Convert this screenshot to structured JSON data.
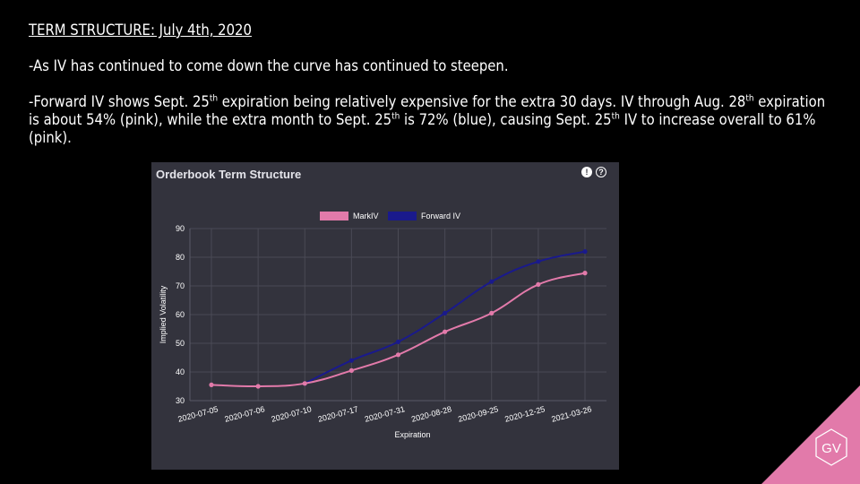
{
  "slide": {
    "title": "TERM STRUCTURE: July 4th, 2020",
    "bullet1": "-As IV has continued to come down the curve has continued to steepen.",
    "bullet2": {
      "p1": "-Forward IV shows Sept. 25",
      "s1": "th",
      "p2": " expiration being relatively expensive for the extra 30 days. IV through Aug. 28",
      "s2": "th",
      "p3": " expiration is about 54% (pink), while the extra month to Sept. 25",
      "s3": "th",
      "p4": " is 72% (blue), causing Sept. 25",
      "s4": "th",
      "p5": " IV to increase overall to 61% (pink)."
    }
  },
  "panel": {
    "title": "Orderbook Term Structure",
    "background": "#33333d"
  },
  "icons": {
    "alert": "exclamation-icon",
    "help": "help-icon",
    "logo": "GV"
  },
  "colors": {
    "markiv": "#e27aaa",
    "forward": "#1a1a8c",
    "logo": "#e27aaa"
  },
  "chart_data": {
    "type": "line",
    "categories": [
      "2020-07-05",
      "2020-07-06",
      "2020-07-10",
      "2020-07-17",
      "2020-07-31",
      "2020-08-28",
      "2020-09-25",
      "2020-12-25",
      "2021-03-26"
    ],
    "series": [
      {
        "name": "MarkIV",
        "color": "#e27aaa",
        "values": [
          35.5,
          35,
          36,
          40.5,
          46,
          54,
          60.5,
          70.5,
          74.5
        ]
      },
      {
        "name": "Forward IV",
        "color": "#1a1a8c",
        "values": [
          null,
          null,
          36,
          44,
          50.5,
          60.5,
          71.5,
          78.5,
          82
        ]
      }
    ],
    "ylim": [
      30,
      90
    ],
    "yticks": [
      30,
      40,
      50,
      60,
      70,
      80,
      90
    ],
    "xlabel": "Expiration",
    "ylabel": "Implied Volatility",
    "grid": true,
    "legend": "top-center"
  }
}
